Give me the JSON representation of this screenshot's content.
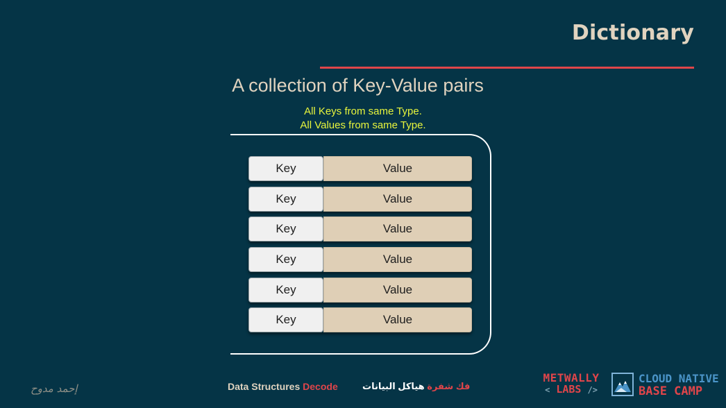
{
  "slide": {
    "title": "Dictionary",
    "subtitle": "A collection of Key-Value pairs",
    "notes": [
      "All Keys from same Type.",
      "All Values from same Type."
    ],
    "pairs": [
      {
        "key": "Key",
        "value": "Value"
      },
      {
        "key": "Key",
        "value": "Value"
      },
      {
        "key": "Key",
        "value": "Value"
      },
      {
        "key": "Key",
        "value": "Value"
      },
      {
        "key": "Key",
        "value": "Value"
      },
      {
        "key": "Key",
        "value": "Value"
      }
    ]
  },
  "footer": {
    "author": "إحمد مدوح",
    "series_prefix": "Data Structures",
    "series_accent": "Decode",
    "series_ar_prefix": "فك شفرة",
    "series_ar_rest": "هياكل البيانات",
    "brand_1_line1": "METWALLY",
    "brand_1_line2": "LABS",
    "brand_1_bracket_open": "<",
    "brand_1_bracket_close": "/>",
    "brand_2_line1": "CLOUD NATIVE",
    "brand_2_line2": "BASE CAMP"
  },
  "colors": {
    "background": "#053446",
    "accent": "#e0454a",
    "heading": "#e0d3bf",
    "note": "#e8f53c",
    "key_fill": "#f0f0f0",
    "value_fill": "#dfcfb6"
  },
  "icons": {
    "brand_2_logo": "mountain-icon"
  }
}
